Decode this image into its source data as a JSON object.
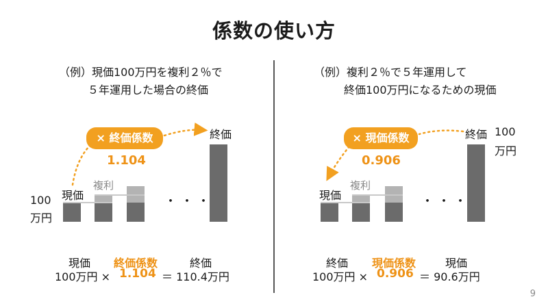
{
  "title": "係数の使い方",
  "left": {
    "example_line1": "（例）現価100万円を複利２％で",
    "example_line2": "５年運用した場合の終価",
    "pill_label": "終価係数",
    "pill_symbol": "×",
    "coefficient": "1.104",
    "start_value_line1": "100",
    "start_value_line2": "万円",
    "label_current": "現価",
    "label_compound": "複利",
    "ellipsis": "・・・",
    "label_final": "終価",
    "formula": {
      "top_left": "現価",
      "top_mid": "終価係数",
      "top_right": "終価",
      "bottom_left": "100万円 ×",
      "bottom_mid": "1.104",
      "bottom_right": "＝ 110.4万円"
    }
  },
  "right": {
    "example_line1": "（例）複利２％で５年運用して",
    "example_line2": "終価100万円になるための現価",
    "pill_label": "現価係数",
    "pill_symbol": "×",
    "coefficient": "0.906",
    "end_value_line1": "100",
    "end_value_line2": "万円",
    "label_current": "現価",
    "label_compound": "複利",
    "ellipsis": "・・・",
    "label_final": "終価",
    "formula": {
      "top_left": "終価",
      "top_mid": "現価係数",
      "top_right": "現価",
      "bottom_left": "100万円 ×",
      "bottom_mid": "0.906",
      "bottom_right": "＝ 90.6万円"
    }
  },
  "page_number": "9",
  "colors": {
    "accent": "#f2a020",
    "bar_dark": "#6b6b6b",
    "bar_light": "#b3b3b3"
  }
}
